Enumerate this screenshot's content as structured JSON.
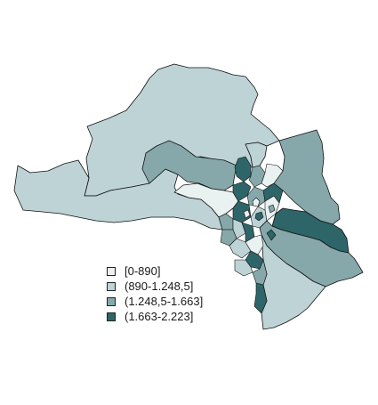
{
  "map": {
    "classes": [
      {
        "label": "[0-890]",
        "color": "#e9f1f1"
      },
      {
        "label": "(890-1.248,5]",
        "color": "#bed3d6"
      },
      {
        "label": "(1.248,5-1.663]",
        "color": "#86a8aa"
      },
      {
        "label": "(1.663-2.223]",
        "color": "#2e6569"
      }
    ]
  }
}
